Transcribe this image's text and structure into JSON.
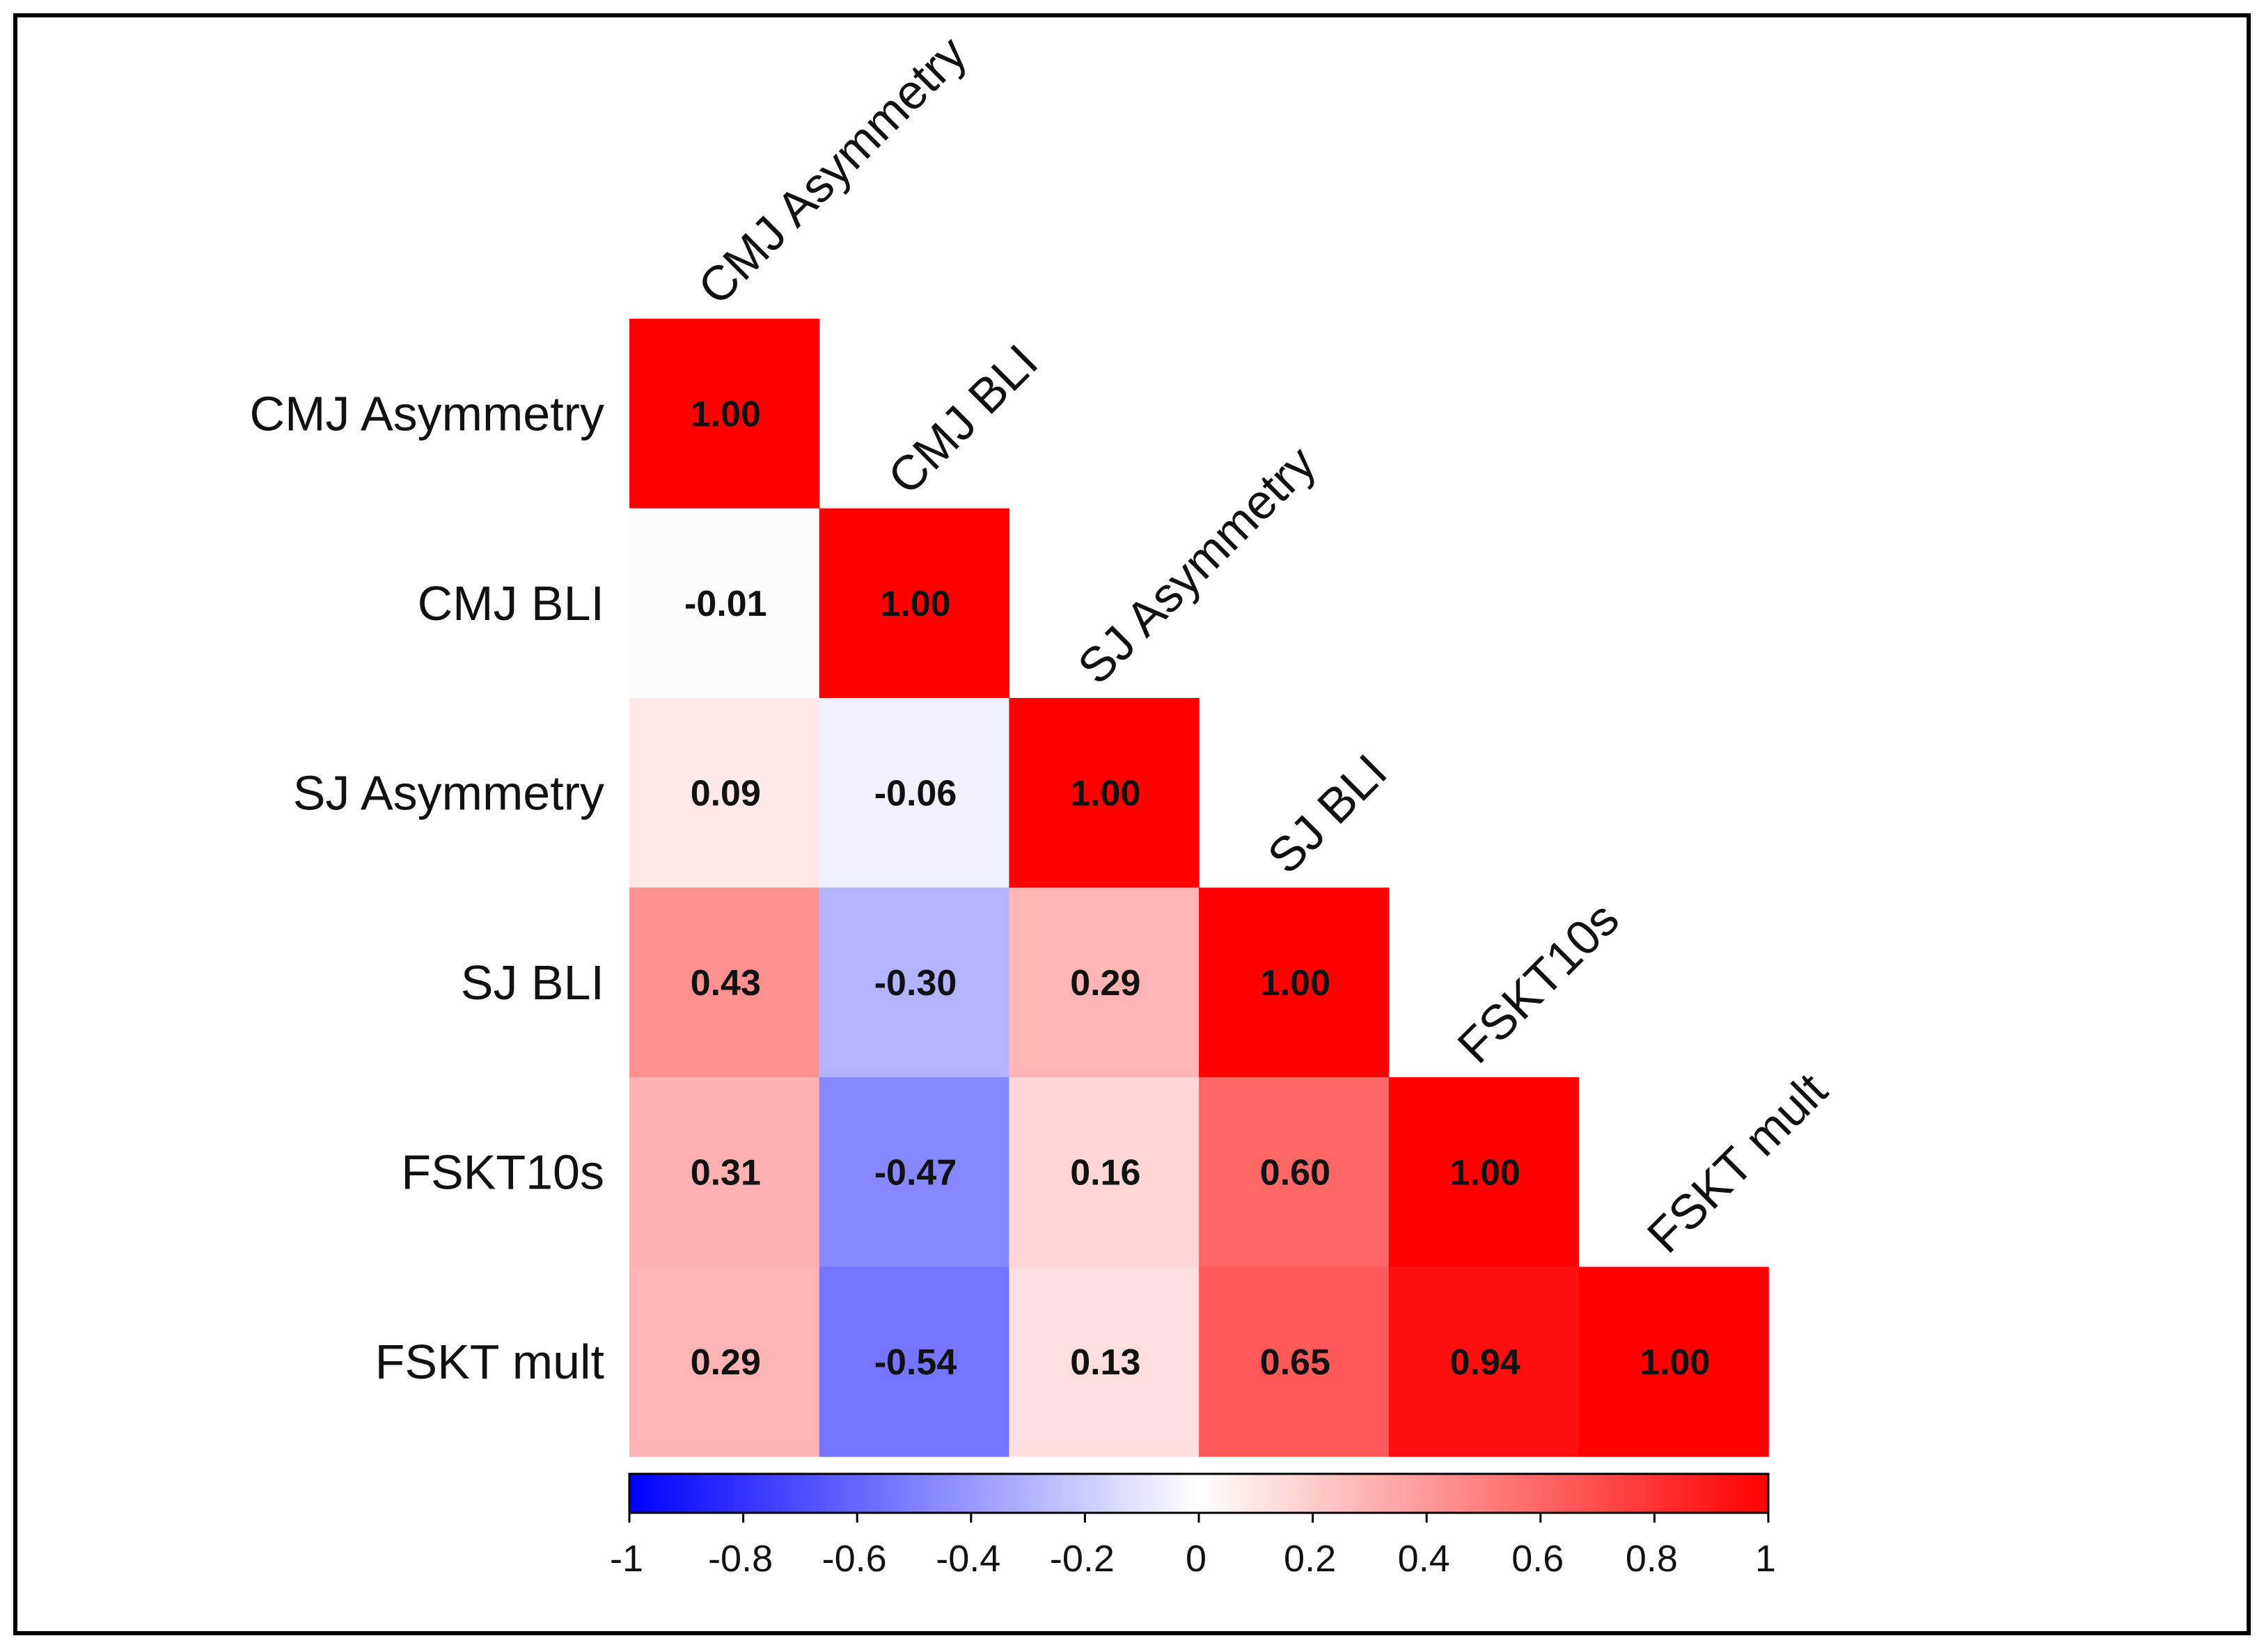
{
  "chart_data": {
    "type": "heatmap",
    "variant": "lower-triangular correlation matrix",
    "title": "",
    "variables": [
      "CMJ Asymmetry",
      "CMJ BLI",
      "SJ Asymmetry",
      "SJ BLI",
      "FSKT10s",
      "FSKT mult"
    ],
    "values": [
      [
        1.0
      ],
      [
        -0.01,
        1.0
      ],
      [
        0.09,
        -0.06,
        1.0
      ],
      [
        0.43,
        -0.3,
        0.29,
        1.0
      ],
      [
        0.31,
        -0.47,
        0.16,
        0.6,
        1.0
      ],
      [
        0.29,
        -0.54,
        0.13,
        0.65,
        0.94,
        1.0
      ]
    ],
    "labels": [
      [
        "1.00"
      ],
      [
        "-0.01",
        "1.00"
      ],
      [
        "0.09",
        "-0.06",
        "1.00"
      ],
      [
        "0.43",
        "-0.30",
        "0.29",
        "1.00"
      ],
      [
        "0.31",
        "-0.47",
        "0.16",
        "0.60",
        "1.00"
      ],
      [
        "0.29",
        "-0.54",
        "0.13",
        "0.65",
        "0.94",
        "1.00"
      ]
    ],
    "colorbar": {
      "range": [
        -1,
        1
      ],
      "ticks": [
        -1,
        -0.8,
        -0.6,
        -0.4,
        -0.2,
        0,
        0.2,
        0.4,
        0.6,
        0.8,
        1
      ],
      "tick_labels": [
        "-1",
        "-0.8",
        "-0.6",
        "-0.4",
        "-0.2",
        "0",
        "0.2",
        "0.4",
        "0.6",
        "0.8",
        "1"
      ],
      "low_color": "#0000ff",
      "mid_color": "#ffffff",
      "high_color": "#ff0000",
      "placement": "bottom"
    }
  }
}
